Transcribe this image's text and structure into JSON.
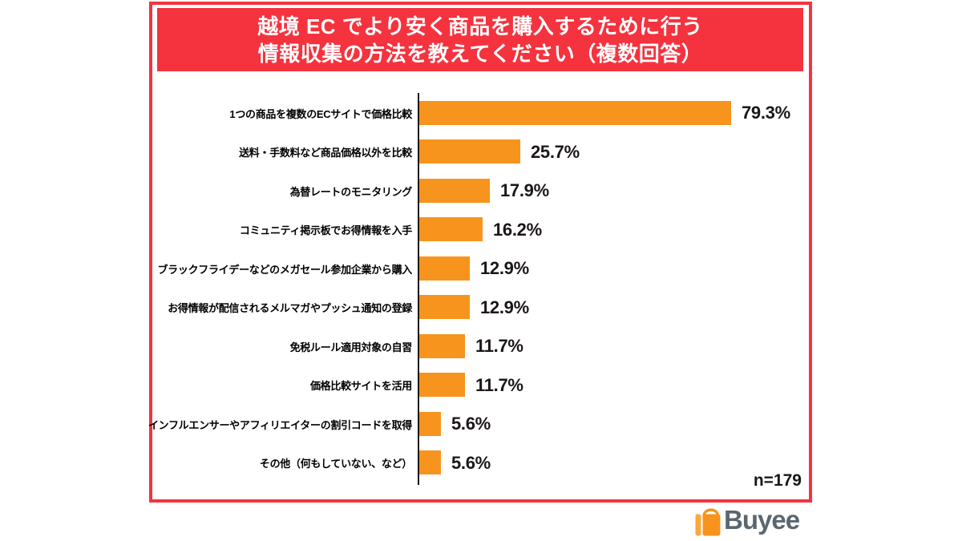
{
  "header": {
    "title_line1": "越境 EC でより安く商品を購入するために行う",
    "title_line2": "情報収集の方法を教えてください（複数回答）"
  },
  "footer": {
    "sample_size": "n=179"
  },
  "logo": {
    "brand": "Buyee",
    "icon": "shopping-bag-icon"
  },
  "colors": {
    "accent_red": "#F4333F",
    "bar_orange": "#F7941D",
    "logo_slate": "#5B6770",
    "text_ink": "#1C1717"
  },
  "chart_data": {
    "type": "bar",
    "orientation": "horizontal",
    "title": "越境ECでより安く商品を購入するために行う情報収集の方法を教えてください（複数回答）",
    "categories": [
      "1つの商品を複数のECサイトで価格比較",
      "送料・手数料など商品価格以外を比較",
      "為替レートのモニタリング",
      "コミュニティ掲示板でお得情報を入手",
      "ブラックフライデーなどのメガセール参加企業から購入",
      "お得情報が配信されるメルマガやプッシュ通知の登録",
      "免税ルール適用対象の自習",
      "価格比較サイトを活用",
      "インフルエンサーやアフィリエイターの割引コードを取得",
      "その他（何もしていない、など）"
    ],
    "values": [
      79.3,
      25.7,
      17.9,
      16.2,
      12.9,
      12.9,
      11.7,
      11.7,
      5.6,
      5.6
    ],
    "unit": "%",
    "xlim": [
      0,
      100
    ],
    "grid": false,
    "legend": "none",
    "sample_note": "n=179"
  }
}
